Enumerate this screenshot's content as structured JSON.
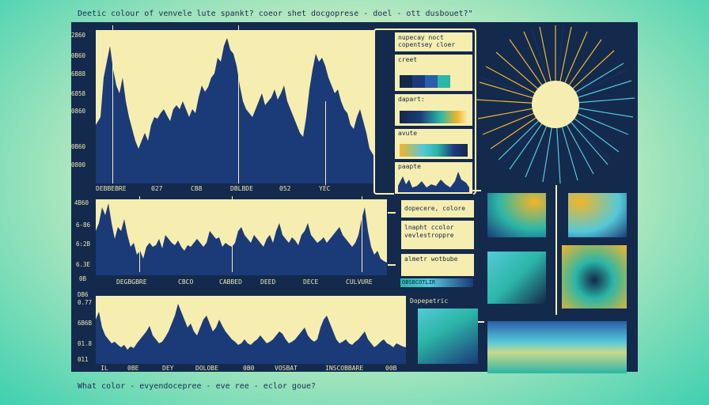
{
  "page": {
    "title": "Deetic colour of venvele lute spankt? coeor shet docgoprese - doel - ott dusbouet?\"",
    "question": "What color - evyendocepree - eve ree - eclor goue?"
  },
  "colors": {
    "navy": "#1b3a78",
    "panel": "#132a4d",
    "cream": "#f6eeb0",
    "yellow": "#f2b52a",
    "teal": "#2bb6a8",
    "cyan": "#54c9d8"
  },
  "top_chart": {
    "y_ticks": [
      "2860",
      "0B60",
      "6B88",
      "6858",
      "0860",
      "0B60",
      "0800"
    ],
    "x_labels": [
      "DEBBEBRE",
      "027",
      "CB8",
      "DBLBDE",
      "052",
      "YEC"
    ]
  },
  "middle_chart": {
    "y_ticks": [
      "4B60",
      "6-86",
      "6:2B",
      "6.3E",
      "0B"
    ],
    "x_labels": [
      "DEGBGBRE",
      "CBCO",
      "CABBED",
      "DEED",
      "DECE",
      "CULVURE"
    ]
  },
  "bottom_chart": {
    "y_ticks": [
      "DB6",
      "0.77",
      "6B6B",
      "01.8",
      "011"
    ],
    "x_labels": [
      "IL",
      "0BE",
      "DEY",
      "DOLOBE",
      "0B0",
      "VOSBAT",
      "INSCOBBARE",
      "00B"
    ]
  },
  "legend_panel": {
    "heading": "nupecay noct\ncopentsey cloer",
    "items": [
      {
        "label": "creet"
      },
      {
        "label": "dapart:"
      },
      {
        "label": "avute"
      },
      {
        "label": "paapte"
      }
    ]
  },
  "info_boxes": {
    "box1": "dopecere, colore",
    "box2": "lnapht ccolor\nvevlestroppre",
    "box3": "almetr wotbube",
    "box3_strip": "OBSBCOTLIR",
    "box4": "Dopepetric"
  }
}
